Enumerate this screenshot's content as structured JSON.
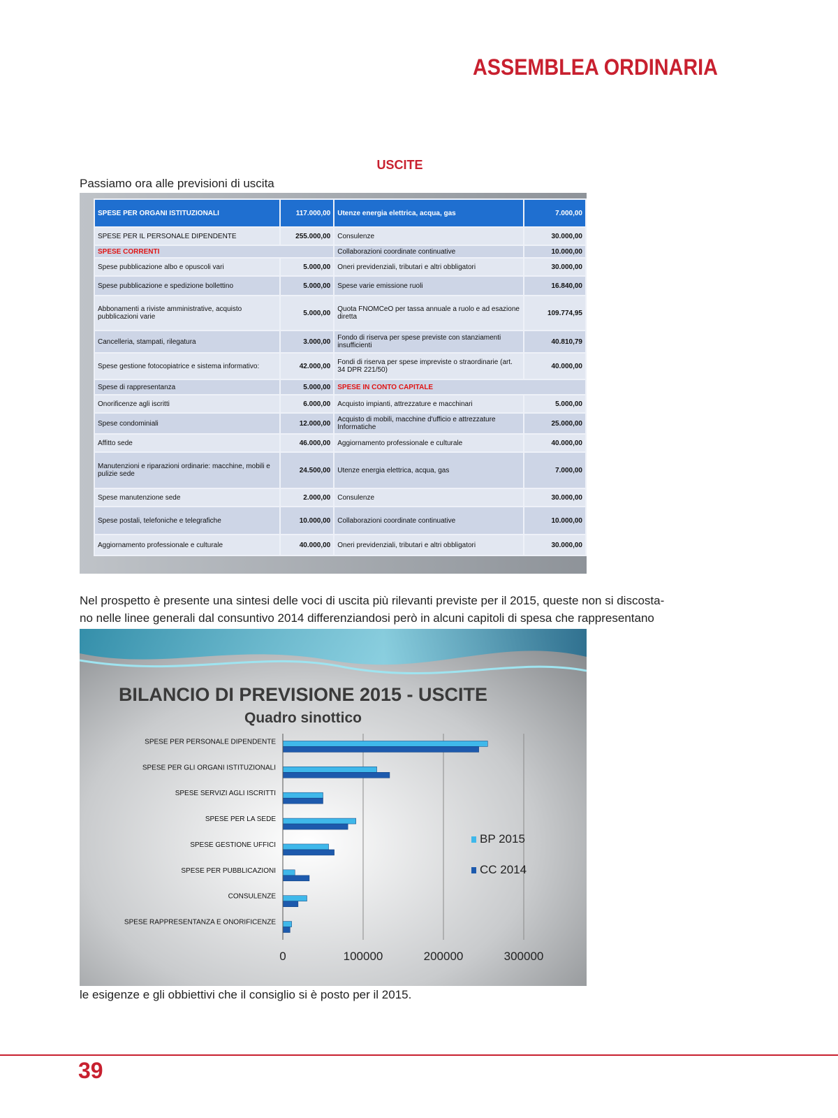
{
  "header": {
    "title": "ASSEMBLEA ORDINARIA"
  },
  "section_title": "USCITE",
  "intro": "Passiamo ora alle previsioni di uscita",
  "table": {
    "rows": [
      {
        "left": [
          "SPESE PER ORGANI ISTITUZIONALI",
          "117.000,00"
        ],
        "right": [
          "Utenze energia elettrica, acqua, gas",
          "7.000,00"
        ]
      },
      {
        "left": [
          "SPESE PER IL PERSONALE DIPENDENTE",
          "255.000,00"
        ],
        "right": [
          "Consulenze",
          "30.000,00"
        ]
      },
      {
        "left": [
          "SPESE CORRENTI"
        ],
        "right": [
          "Collaborazioni coordinate continuative",
          "10.000,00"
        ]
      },
      {
        "left": [
          "Spese pubblicazione albo e opuscoli vari",
          "5.000,00"
        ],
        "right": [
          "Oneri previdenziali, tributari e altri obbligatori",
          "30.000,00"
        ]
      },
      {
        "left": [
          "Spese pubblicazione e spedizione bollettino",
          "5.000,00"
        ],
        "right": [
          "Spese varie  emissione ruoli",
          "16.840,00"
        ]
      },
      {
        "left": [
          "Abbonamenti a riviste amministrative, acquisto pubblicazioni varie",
          "5.000,00"
        ],
        "right": [
          "Quota FNOMCeO per tassa annuale a ruolo e ad esazione diretta",
          "109.774,95"
        ]
      },
      {
        "left": [
          "Cancelleria, stampati, rilegatura",
          "3.000,00"
        ],
        "right": [
          "Fondo di riserva per spese previste con stanziamenti insufficienti",
          "40.810,79"
        ]
      },
      {
        "left": [
          "Spese gestione fotocopiatrice e sistema informativo:",
          "42.000,00"
        ],
        "right": [
          "Fondi di riserva per spese impreviste o straordinarie (art. 34 DPR 221/50)",
          "40.000,00"
        ]
      },
      {
        "left": [
          "Spese di rappresentanza",
          "5.000,00"
        ],
        "right": [
          "SPESE IN CONTO CAPITALE"
        ]
      },
      {
        "left": [
          "Onorificenze agli iscritti",
          "6.000,00"
        ],
        "right": [
          "Acquisto impianti, attrezzature e macchinari",
          "5.000,00"
        ]
      },
      {
        "left": [
          "Spese condominiali",
          "12.000,00"
        ],
        "right": [
          "Acquisto di mobili, macchine d'ufficio e attrezzature Informatiche",
          "25.000,00"
        ]
      },
      {
        "left": [
          "Affitto sede",
          "46.000,00"
        ],
        "right": [
          "Aggiornamento professionale e culturale",
          "40.000,00"
        ]
      },
      {
        "left": [
          "Manutenzioni  e riparazioni ordinarie:  macchine, mobili e pulizie sede",
          "24.500,00"
        ],
        "right": [
          "Utenze energia elettrica, acqua, gas",
          "7.000,00"
        ]
      },
      {
        "left": [
          "Spese manutenzione  sede",
          "2.000,00"
        ],
        "right": [
          "Consulenze",
          "30.000,00"
        ]
      },
      {
        "left": [
          "Spese postali, telefoniche e telegrafiche",
          "10.000,00"
        ],
        "right": [
          "Collaborazioni coordinate continuative",
          "10.000,00"
        ]
      },
      {
        "left": [
          "Aggiornamento professionale  e culturale",
          "40.000,00"
        ],
        "right": [
          "Oneri previdenziali, tributari e altri obbligatori",
          "30.000,00"
        ]
      }
    ]
  },
  "paragraph": [
    "Nel prospetto è presente una sintesi delle voci di uscita più rilevanti previste per il 2015, queste non si discosta-",
    "no nelle linee generali dal consuntivo 2014 differenziandosi però in alcuni capitoli di spesa che rappresentano"
  ],
  "chart_data": {
    "type": "hbar",
    "title": "BILANCIO DI PREVISIONE  2015  - USCITE",
    "subtitle": "Quadro sinottico",
    "categories": [
      "SPESE PER PERSONALE DIPENDENTE",
      "SPESE PER GLI ORGANI ISTITUZIONALI",
      "SPESE SERVIZI AGLI ISCRITTI",
      "SPESE PER LA SEDE",
      "SPESE GESTIONE  UFFICI",
      "SPESE PER PUBBLICAZIONI",
      "CONSULENZE",
      "SPESE RAPPRESENTANZA E ONORIFICENZE"
    ],
    "series": [
      {
        "name": "BP 2015",
        "color": "#3fb8ea",
        "values": [
          255000,
          117000,
          50000,
          91000,
          57000,
          15000,
          30000,
          11000
        ]
      },
      {
        "name": "CC 2014",
        "color": "#1d5aad",
        "values": [
          244000,
          133000,
          50000,
          81000,
          64000,
          33000,
          19000,
          9000
        ]
      }
    ],
    "xlim": [
      0,
      300000
    ],
    "xticks": [
      0,
      100000,
      200000,
      300000
    ],
    "grid": true,
    "legend": "right"
  },
  "closing": "le esigenze e gli obbiettivi che il consiglio si è posto per il 2015.",
  "page_number": "39"
}
